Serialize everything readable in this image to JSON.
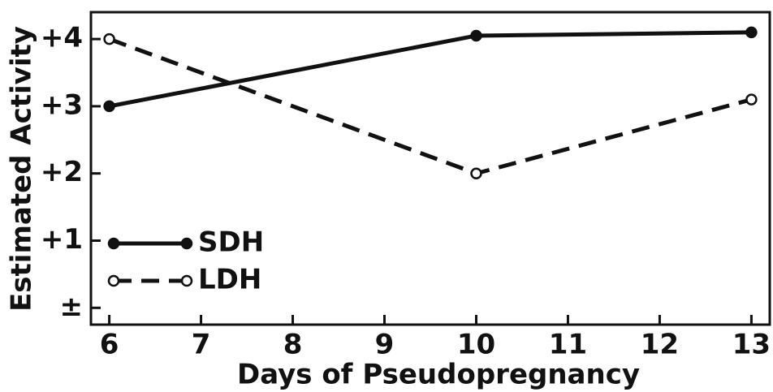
{
  "chart_data": {
    "type": "line",
    "xlabel": "Days of Pseudopregnancy",
    "ylabel": "Estimated Activity",
    "x": [
      6,
      10,
      13
    ],
    "series": [
      {
        "name": "SDH",
        "color": "#111111",
        "linestyle": "solid",
        "marker": "filled",
        "values": [
          3,
          4.05,
          4.1
        ]
      },
      {
        "name": "LDH",
        "color": "#111111",
        "linestyle": "dashed",
        "marker": "open",
        "values": [
          4,
          2,
          3.1
        ]
      }
    ],
    "xlim": [
      5.8,
      13.2
    ],
    "xticks": [
      6,
      7,
      8,
      9,
      10,
      11,
      12,
      13
    ],
    "ylim": [
      -0.25,
      4.4
    ],
    "yticks": [
      {
        "value": 0,
        "label": "±"
      },
      {
        "value": 1,
        "label": "+1"
      },
      {
        "value": 2,
        "label": "+2"
      },
      {
        "value": 3,
        "label": "+3"
      },
      {
        "value": 4,
        "label": "+4"
      }
    ],
    "legend": "lower left"
  }
}
